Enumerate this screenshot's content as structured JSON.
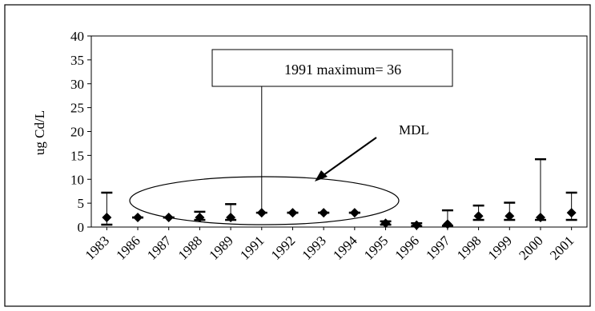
{
  "chart_data": {
    "type": "scatter",
    "title": "",
    "xlabel": "",
    "ylabel": "ug Cd/L",
    "ylim": [
      0,
      40
    ],
    "yticks": [
      0,
      5,
      10,
      15,
      20,
      25,
      30,
      35,
      40
    ],
    "grid": false,
    "legend": "none",
    "categories": [
      "1983",
      "1986",
      "1987",
      "1988",
      "1989",
      "1991",
      "1992",
      "1993",
      "1994",
      "1995",
      "1996",
      "1997",
      "1998",
      "1999",
      "2000",
      "2001"
    ],
    "series": [
      {
        "marker": "diamond",
        "median": [
          2,
          2,
          2,
          2,
          2,
          3,
          3,
          3,
          3,
          0.8,
          0.4,
          0.6,
          2.3,
          2.3,
          2,
          3
        ],
        "min": [
          0.5,
          2,
          2,
          1.5,
          1.5,
          3,
          3,
          3,
          3,
          0.5,
          0.2,
          0.3,
          1.5,
          1.5,
          1.5,
          1.5
        ],
        "max": [
          7.2,
          2,
          2,
          3.2,
          4.8,
          36.2,
          3,
          3,
          3,
          1.2,
          0.8,
          3.5,
          4.5,
          5.1,
          14.2,
          7.2
        ]
      }
    ],
    "annotations": {
      "max_box": "1991 maximum= 36",
      "mdl_label": "MDL"
    }
  }
}
